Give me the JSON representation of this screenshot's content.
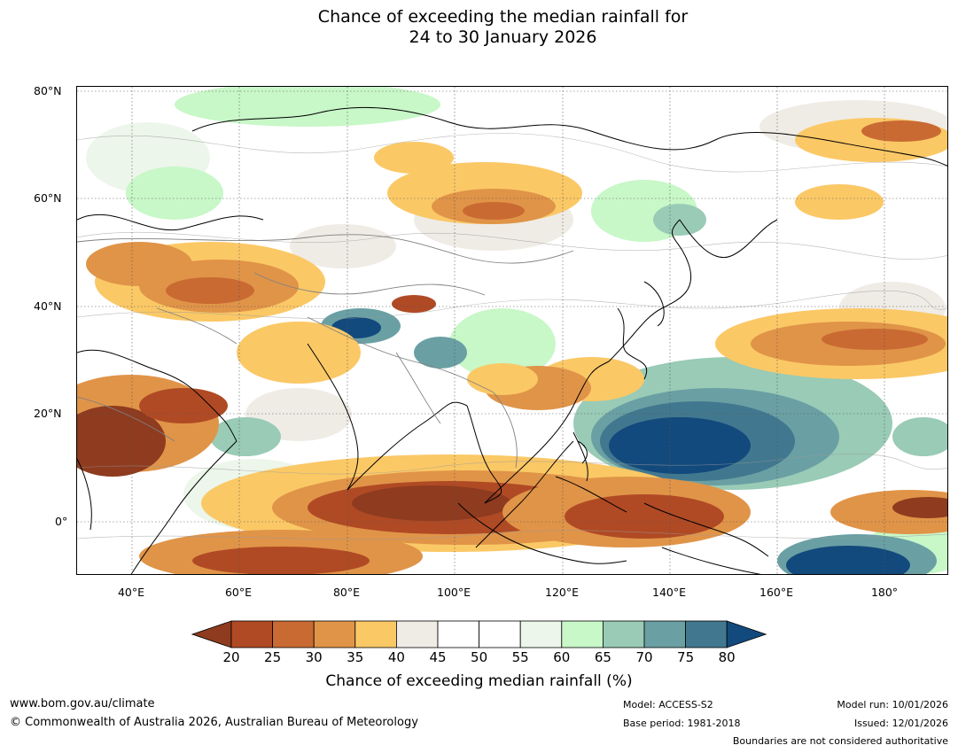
{
  "title": {
    "line1": "Chance of exceeding the median rainfall for",
    "line2": "24 to 30 January 2026"
  },
  "axes": {
    "lat_labels": [
      "80°N",
      "60°N",
      "40°N",
      "20°N",
      "0°"
    ],
    "lon_labels": [
      "40°E",
      "60°E",
      "80°E",
      "100°E",
      "120°E",
      "140°E",
      "160°E",
      "180°"
    ]
  },
  "colorbar": {
    "ticks": [
      "20",
      "25",
      "30",
      "35",
      "40",
      "45",
      "50",
      "55",
      "60",
      "65",
      "70",
      "75",
      "80"
    ],
    "colors": [
      "#8e3b1f",
      "#b04a24",
      "#c96a33",
      "#e09448",
      "#fbc866",
      "#efece6",
      "#ffffff",
      "#ffffff",
      "#ecf6ea",
      "#c8f7c8",
      "#99cbb6",
      "#6aa0a4",
      "#42788f",
      "#134a7d"
    ],
    "label": "Chance of exceeding median rainfall (%)"
  },
  "footer": {
    "url": "www.bom.gov.au/climate",
    "copyright": "© Commonwealth of Australia 2026, Australian Bureau of Meteorology",
    "model": "Model: ACCESS-S2",
    "base_period": "Base period: 1981-2018",
    "model_run": "Model run: 10/01/2026",
    "issued": "Issued: 12/01/2026",
    "disclaimer": "Boundaries are not considered authoritative"
  }
}
